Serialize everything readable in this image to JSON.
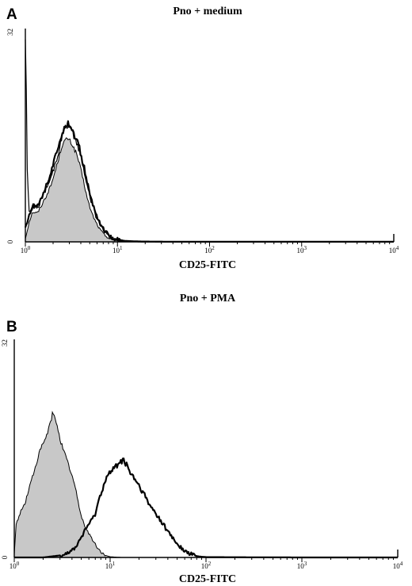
{
  "chart_data": [
    {
      "type": "area",
      "panel": "A",
      "title": "Pno + medium",
      "xlabel": "CD25-FITC",
      "ylabel": "",
      "xscale": "log",
      "xlim": [
        1,
        10000
      ],
      "ylim": [
        0,
        32
      ],
      "yticks": [
        "0",
        "32"
      ],
      "xticks": [
        {
          "base": "10",
          "exp": "0"
        },
        {
          "base": "10",
          "exp": "1"
        },
        {
          "base": "10",
          "exp": "2"
        },
        {
          "base": "10",
          "exp": "3"
        },
        {
          "base": "10",
          "exp": "4"
        }
      ],
      "grid": false,
      "legend": "none",
      "series": [
        {
          "style": "filled-gray",
          "color": "#c8c8c8",
          "x": [
            1,
            1.1,
            1.2,
            1.35,
            1.5,
            1.7,
            1.9,
            2.1,
            2.3,
            2.5,
            2.7,
            2.9,
            3.1,
            3.3,
            3.6,
            3.9,
            4.3,
            4.7,
            5.2,
            5.8,
            6.5,
            7.3,
            8.2,
            9.2,
            10.5,
            12,
            14
          ],
          "values": [
            0.5,
            3,
            4.5,
            4.3,
            5.5,
            7,
            8.5,
            10.5,
            12.5,
            14.5,
            15.2,
            15.5,
            15.0,
            14.3,
            13.2,
            11.5,
            9.0,
            6.5,
            4.5,
            3.0,
            1.8,
            1.0,
            0.5,
            0.3,
            0.1,
            0.05,
            0
          ]
        },
        {
          "style": "line-thin",
          "color": "#000000",
          "x": [
            1,
            1.02,
            1.05,
            1.1,
            1.2,
            1.35,
            1.5,
            1.7,
            1.9,
            2.1,
            2.3,
            2.5,
            2.7,
            2.9,
            3.1,
            3.3,
            3.6,
            3.9,
            4.3,
            4.7,
            5.2,
            5.8,
            6.5,
            7.3,
            8.2,
            9.2,
            10.5,
            12,
            14,
            18,
            30
          ],
          "values": [
            31,
            25,
            10,
            4.5,
            5.5,
            5.0,
            6.5,
            8.0,
            9.5,
            11.5,
            13.5,
            16.0,
            17.0,
            17.2,
            16.8,
            16.0,
            15.0,
            13.5,
            11.0,
            8.5,
            6.0,
            4.0,
            2.5,
            1.5,
            0.8,
            0.4,
            0.2,
            0.1,
            0.05,
            0.02,
            0
          ]
        },
        {
          "style": "line-thick",
          "color": "#000000",
          "x": [
            1,
            1.1,
            1.2,
            1.35,
            1.5,
            1.7,
            1.9,
            2.1,
            2.3,
            2.5,
            2.7,
            2.9,
            3.1,
            3.3,
            3.6,
            3.9,
            4.3,
            4.7,
            5.2,
            5.8,
            6.5,
            7.3,
            8.2,
            9.2,
            10.5,
            12,
            14,
            18,
            30,
            100,
            1000,
            10000
          ],
          "values": [
            2,
            4,
            5.5,
            5.5,
            6.8,
            8.5,
            10.5,
            12.5,
            14.5,
            16.5,
            17.5,
            17.8,
            17.3,
            16.5,
            15.3,
            13.8,
            11.5,
            8.8,
            6.3,
            4.3,
            2.7,
            1.6,
            0.9,
            0.5,
            0.3,
            0.15,
            0.1,
            0.05,
            0.03,
            0.02,
            0.02,
            0.02
          ]
        }
      ]
    },
    {
      "type": "area",
      "panel": "B",
      "title": "Pno + PMA",
      "xlabel": "CD25-FITC",
      "ylabel": "",
      "xscale": "log",
      "xlim": [
        1,
        10000
      ],
      "ylim": [
        0,
        32
      ],
      "yticks": [
        "0",
        "32"
      ],
      "xticks": [
        {
          "base": "10",
          "exp": "0"
        },
        {
          "base": "10",
          "exp": "1"
        },
        {
          "base": "10",
          "exp": "2"
        },
        {
          "base": "10",
          "exp": "3"
        },
        {
          "base": "10",
          "exp": "4"
        }
      ],
      "grid": false,
      "legend": "none",
      "series": [
        {
          "style": "filled-gray",
          "color": "#c8c8c8",
          "x": [
            1,
            1.05,
            1.15,
            1.3,
            1.45,
            1.6,
            1.75,
            1.9,
            2.05,
            2.2,
            2.35,
            2.5,
            2.65,
            2.8,
            3.0,
            3.2,
            3.5,
            3.8,
            4.2,
            4.6,
            5.0,
            5.5,
            6.0,
            6.6,
            7.3,
            8.0,
            9.0,
            10.0,
            11.5,
            13
          ],
          "values": [
            0.5,
            5,
            6.5,
            8,
            10.5,
            12.5,
            14.5,
            16.0,
            17.0,
            18.0,
            19.5,
            21.0,
            20.5,
            19.5,
            17.5,
            16.0,
            14.5,
            13.0,
            11.0,
            8.5,
            6.0,
            4.5,
            3.5,
            2.5,
            1.5,
            0.8,
            0.3,
            0.1,
            0.05,
            0
          ]
        },
        {
          "style": "line-thick",
          "color": "#000000",
          "x": [
            1,
            2,
            3,
            4,
            4.5,
            5,
            5.5,
            6,
            6.5,
            7,
            7.5,
            8,
            8.5,
            9,
            10,
            11,
            12,
            13,
            14,
            15,
            16,
            18,
            20,
            23,
            26,
            30,
            35,
            40,
            45,
            50,
            55,
            60,
            70,
            80,
            90,
            100,
            1000,
            10000
          ],
          "values": [
            0,
            0,
            0.3,
            1.0,
            1.8,
            3.0,
            4.0,
            5.0,
            5.5,
            6.5,
            8.0,
            9.5,
            10.5,
            11.5,
            12.5,
            13.0,
            13.8,
            14.2,
            14.0,
            13.5,
            12.5,
            11.5,
            10.5,
            9.0,
            7.5,
            6.5,
            5.0,
            3.8,
            2.8,
            2.0,
            1.4,
            0.9,
            0.5,
            0.2,
            0.1,
            0.05,
            0,
            0
          ]
        }
      ]
    }
  ]
}
